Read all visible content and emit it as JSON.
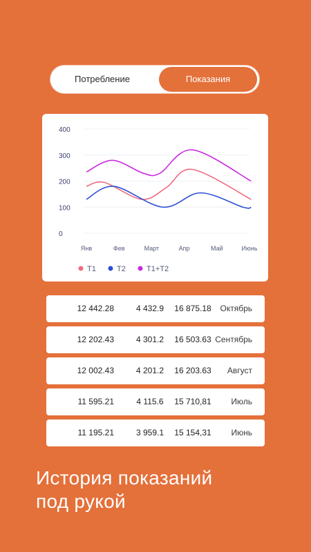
{
  "toggle": {
    "consumption_label": "Потребление",
    "readings_label": "Показания"
  },
  "chart_data": {
    "type": "line",
    "categories": [
      "Янв",
      "Фев",
      "Март",
      "Апр",
      "Май",
      "Июнь"
    ],
    "y_ticks": [
      "400",
      "300",
      "200",
      "100",
      "0"
    ],
    "ylim": [
      0,
      400
    ],
    "grid": true,
    "legend_position": "bottom-left",
    "series": [
      {
        "name": "T1",
        "color": "#F06A7E",
        "x": [
          0,
          0.55,
          1.7,
          2.45,
          3.25,
          5.05
        ],
        "values": [
          180,
          195,
          130,
          175,
          245,
          130
        ]
      },
      {
        "name": "T2",
        "color": "#2C4FD6",
        "x": [
          0,
          0.85,
          2.35,
          3.5,
          4.8,
          5.05
        ],
        "values": [
          130,
          180,
          100,
          155,
          100,
          100
        ]
      },
      {
        "name": "T1+T2",
        "color": "#C92AE0",
        "x": [
          0,
          0.8,
          1.75,
          2.25,
          3.25,
          5.05
        ],
        "values": [
          235,
          280,
          230,
          230,
          320,
          200
        ]
      }
    ]
  },
  "readings": [
    {
      "t1": "12 442.28",
      "t2": "4 432.9",
      "total": "16 875.18",
      "month": "Октябрь"
    },
    {
      "t1": "12 202.43",
      "t2": "4 301.2",
      "total": "16 503.63",
      "month": "Сентябрь"
    },
    {
      "t1": "12 002.43",
      "t2": "4 201.2",
      "total": "16 203.63",
      "month": "Август"
    },
    {
      "t1": "11 595.21",
      "t2": "4 115.6",
      "total": "15 710,81",
      "month": "Июль"
    },
    {
      "t1": "11 195.21",
      "t2": "3 959.1",
      "total": "15 154,31",
      "month": "Июнь"
    }
  ],
  "headline": {
    "line1": "История показаний",
    "line2": "под рукой"
  }
}
